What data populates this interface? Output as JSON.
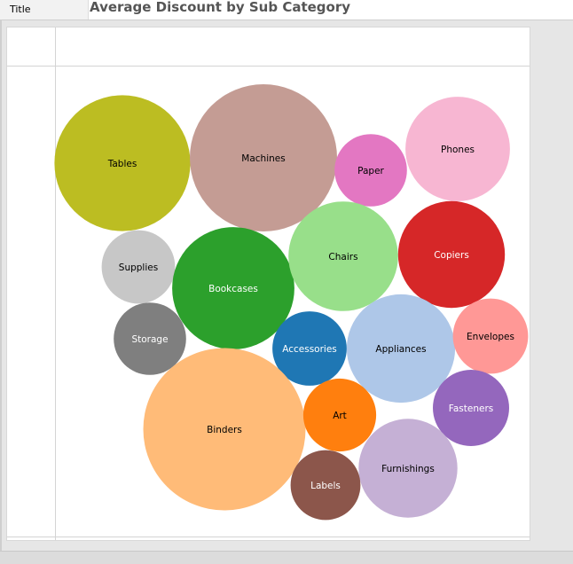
{
  "header": {
    "tab_label": "Title",
    "title": "Average Discount by Sub Category"
  },
  "chart_data": {
    "type": "bubble",
    "title": "Average Discount by Sub Category",
    "measure": "Average Discount",
    "dimension": "Sub Category",
    "bubbles": [
      {
        "name": "Tables",
        "value": 0.261,
        "color": "#bcbd22",
        "text_color": "#000000"
      },
      {
        "name": "Machines",
        "value": 0.306,
        "color": "#c49c94",
        "text_color": "#000000"
      },
      {
        "name": "Paper",
        "value": 0.074,
        "color": "#e377c2",
        "text_color": "#000000"
      },
      {
        "name": "Phones",
        "value": 0.154,
        "color": "#f7b6d2",
        "text_color": "#000000"
      },
      {
        "name": "Supplies",
        "value": 0.076,
        "color": "#c7c7c7",
        "text_color": "#000000"
      },
      {
        "name": "Bookcases",
        "value": 0.211,
        "color": "#2ca02c",
        "text_color": "#ffffff"
      },
      {
        "name": "Chairs",
        "value": 0.17,
        "color": "#98df8a",
        "text_color": "#000000"
      },
      {
        "name": "Copiers",
        "value": 0.161,
        "color": "#d62728",
        "text_color": "#ffffff"
      },
      {
        "name": "Storage",
        "value": 0.074,
        "color": "#7f7f7f",
        "text_color": "#ffffff"
      },
      {
        "name": "Accessories",
        "value": 0.078,
        "color": "#1f77b4",
        "text_color": "#ffffff"
      },
      {
        "name": "Appliances",
        "value": 0.166,
        "color": "#aec7e8",
        "text_color": "#000000"
      },
      {
        "name": "Envelopes",
        "value": 0.08,
        "color": "#ff9896",
        "text_color": "#000000"
      },
      {
        "name": "Binders",
        "value": 0.372,
        "color": "#ffbb78",
        "text_color": "#000000"
      },
      {
        "name": "Art",
        "value": 0.075,
        "color": "#ff7f0e",
        "text_color": "#000000"
      },
      {
        "name": "Fasteners",
        "value": 0.082,
        "color": "#9467bd",
        "text_color": "#ffffff"
      },
      {
        "name": "Furnishings",
        "value": 0.138,
        "color": "#c5b0d5",
        "text_color": "#000000"
      },
      {
        "name": "Labels",
        "value": 0.069,
        "color": "#8c564b",
        "text_color": "#ffffff"
      }
    ]
  }
}
